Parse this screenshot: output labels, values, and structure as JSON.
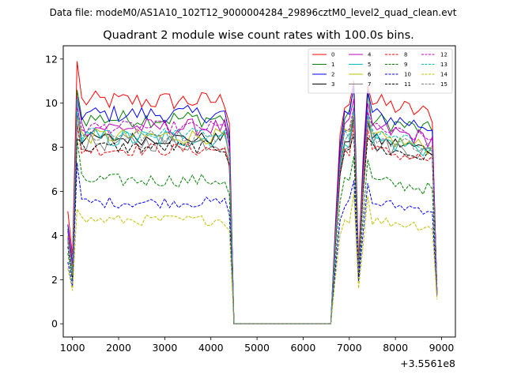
{
  "chart_data": {
    "type": "line",
    "suptitle": "Data file: modeM0/AS1A10_102T12_9000004284_29896cztM0_level2_quad_clean.evt",
    "title": "Quadrant 2 module wise count rates with 100.0s bins.",
    "xlabel": "",
    "ylabel": "",
    "x_offset_label": "+3.5561e8",
    "xlim": [
      800,
      9300
    ],
    "ylim": [
      -0.6,
      12.6
    ],
    "x_ticks": [
      1000,
      2000,
      3000,
      4000,
      5000,
      6000,
      7000,
      8000,
      9000
    ],
    "y_ticks": [
      0,
      2,
      4,
      6,
      8,
      10,
      12
    ],
    "x_tick_labels": [
      "1000",
      "2000",
      "3000",
      "4000",
      "5000",
      "6000",
      "7000",
      "8000",
      "9000"
    ],
    "y_tick_labels": [
      "0",
      "2",
      "4",
      "6",
      "8",
      "10",
      "12"
    ],
    "grid": false,
    "legend_position": "top-right",
    "x": [
      900,
      1000,
      1100,
      1200,
      1300,
      1400,
      1500,
      1600,
      1700,
      1800,
      1900,
      2000,
      2100,
      2200,
      2300,
      2400,
      2500,
      2600,
      2700,
      2800,
      2900,
      3000,
      3100,
      3200,
      3300,
      3400,
      3500,
      3600,
      3700,
      3800,
      3900,
      4000,
      4100,
      4200,
      4300,
      4400,
      4500,
      4600,
      4700,
      4800,
      4900,
      5000,
      5100,
      5200,
      5300,
      5400,
      5500,
      5600,
      5700,
      5800,
      5900,
      6000,
      6100,
      6200,
      6300,
      6400,
      6500,
      6600,
      6700,
      6800,
      6900,
      7000,
      7100,
      7200,
      7300,
      7400,
      7500,
      7600,
      7700,
      7800,
      7900,
      8000,
      8100,
      8200,
      8300,
      8400,
      8500,
      8600,
      8700,
      8800,
      8900
    ],
    "active_ranges": [
      [
        900,
        4400
      ],
      [
        6700,
        8900
      ]
    ],
    "series": [
      {
        "name": "0",
        "color": "#ff0000",
        "dash": "solid",
        "base": 10.1,
        "start": 5.1,
        "spike": 11.9,
        "dip2": 2.8,
        "peak2": 11.0,
        "end": 1.5,
        "noise": 0.45
      },
      {
        "name": "1",
        "color": "#008000",
        "dash": "solid",
        "base": 9.3,
        "start": 4.3,
        "spike": 10.6,
        "dip2": 2.6,
        "peak2": 10.7,
        "end": 1.4,
        "noise": 0.4
      },
      {
        "name": "2",
        "color": "#0000ff",
        "dash": "solid",
        "base": 9.5,
        "start": 4.5,
        "spike": 10.3,
        "dip2": 2.4,
        "peak2": 10.8,
        "end": 1.5,
        "noise": 0.4
      },
      {
        "name": "3",
        "color": "#000000",
        "dash": "solid",
        "base": 8.4,
        "start": 4.0,
        "spike": 9.6,
        "dip2": 2.3,
        "peak2": 9.4,
        "end": 1.4,
        "noise": 0.3
      },
      {
        "name": "4",
        "color": "#bf00bf",
        "dash": "solid",
        "base": 8.9,
        "start": 4.2,
        "spike": 10.3,
        "dip2": 2.6,
        "peak2": 10.2,
        "end": 1.5,
        "noise": 0.4
      },
      {
        "name": "5",
        "color": "#00bfbf",
        "dash": "solid",
        "base": 8.4,
        "start": 3.9,
        "spike": 10.2,
        "dip2": 2.4,
        "peak2": 9.9,
        "end": 1.4,
        "noise": 0.45
      },
      {
        "name": "6",
        "color": "#bfbf00",
        "dash": "solid",
        "base": 8.5,
        "start": 4.0,
        "spike": 9.4,
        "dip2": 2.4,
        "peak2": 9.6,
        "end": 1.4,
        "noise": 0.35
      },
      {
        "name": "7",
        "color": "#808080",
        "dash": "solid",
        "base": 8.2,
        "start": 3.8,
        "spike": 9.1,
        "dip2": 2.3,
        "peak2": 9.2,
        "end": 1.4,
        "noise": 0.4
      },
      {
        "name": "8",
        "color": "#ff0000",
        "dash": "dashed",
        "base": 7.9,
        "start": 3.7,
        "spike": 9.0,
        "dip2": 2.2,
        "peak2": 9.0,
        "end": 1.3,
        "noise": 0.3
      },
      {
        "name": "9",
        "color": "#008000",
        "dash": "dashed",
        "base": 6.5,
        "start": 3.2,
        "spike": 8.4,
        "dip2": 2.0,
        "peak2": 7.6,
        "end": 1.3,
        "noise": 0.3
      },
      {
        "name": "10",
        "color": "#0000ff",
        "dash": "dashed",
        "base": 5.5,
        "start": 2.8,
        "spike": 7.3,
        "dip2": 1.9,
        "peak2": 6.5,
        "end": 1.2,
        "noise": 0.25
      },
      {
        "name": "11",
        "color": "#000000",
        "dash": "dashed",
        "base": 8.0,
        "start": 3.5,
        "spike": 8.4,
        "dip2": 2.2,
        "peak2": 8.6,
        "end": 1.3,
        "noise": 0.3
      },
      {
        "name": "12",
        "color": "#bf00bf",
        "dash": "dashed",
        "base": 8.9,
        "start": 3.9,
        "spike": 9.8,
        "dip2": 2.4,
        "peak2": 9.8,
        "end": 1.4,
        "noise": 0.3
      },
      {
        "name": "13",
        "color": "#00bfbf",
        "dash": "dashed",
        "base": 8.6,
        "start": 3.8,
        "spike": 9.6,
        "dip2": 2.3,
        "peak2": 9.6,
        "end": 1.4,
        "noise": 0.3
      },
      {
        "name": "14",
        "color": "#bfbf00",
        "dash": "dashed",
        "base": 4.7,
        "start": 2.5,
        "spike": 5.2,
        "dip2": 1.6,
        "peak2": 5.9,
        "end": 1.1,
        "noise": 0.25
      },
      {
        "name": "15",
        "color": "#808080",
        "dash": "dashed",
        "base": 8.5,
        "start": 3.7,
        "spike": 9.4,
        "dip2": 2.3,
        "peak2": 9.4,
        "end": 1.3,
        "noise": 0.3
      }
    ]
  }
}
